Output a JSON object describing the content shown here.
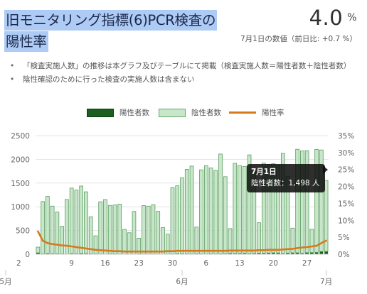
{
  "header": {
    "title_line1": "旧モニタリング指標(6)PCR検査の",
    "title_line2": "陽性率",
    "value": "4.0",
    "unit": "%",
    "sub": "7月1日の数値（前日比: +0.7 %）"
  },
  "notes": [
    "「検査実施人数」の推移は本グラフ及びテーブルにて掲載（検査実施人数＝陽性者数＋陰性者数）",
    "陰性確認のために行った検査の実施人数は含まない"
  ],
  "legend": {
    "positive": "陽性者数",
    "negative": "陰性者数",
    "rate": "陽性率"
  },
  "colors": {
    "positive": "#1b5e20",
    "negative": "#c8e6c9",
    "negative_border": "#5a9e60",
    "rate": "#d77a1c",
    "title_highlight": "#aecbf5"
  },
  "tooltip": {
    "title": "7月1日",
    "body": "陰性者数：1,498 人"
  },
  "chart_data": {
    "type": "bar",
    "left_ticks": [
      "0",
      "500",
      "1000",
      "1500",
      "2000",
      "2500"
    ],
    "right_ticks": [
      "0%",
      "5%",
      "10%",
      "15%",
      "20%",
      "25%",
      "30%",
      "35%"
    ],
    "ylim_left": [
      0,
      2500
    ],
    "ylim_right": [
      0,
      35
    ],
    "x_day_labels": [
      "2",
      "9",
      "16",
      "23",
      "30",
      "6",
      "13",
      "20",
      "27"
    ],
    "x_month_labels": [
      "5月",
      "6月",
      "7月"
    ],
    "x_start_date": "2020-05-02",
    "x_end_date": "2020-07-01",
    "series": [
      {
        "name": "陽性者数",
        "values": [
          30,
          10,
          18,
          14,
          12,
          8,
          4,
          15,
          12,
          18,
          16,
          10,
          8,
          6,
          3,
          10,
          8,
          6,
          4,
          3,
          2,
          8,
          6,
          4,
          5,
          3,
          2,
          4,
          6,
          14,
          12,
          10,
          8,
          12,
          8,
          6,
          10,
          8,
          12,
          14,
          20,
          16,
          18,
          22,
          14,
          18,
          24,
          22,
          26,
          30,
          28,
          16,
          26,
          30,
          32,
          20,
          34,
          36,
          40,
          58,
          60
        ]
      },
      {
        "name": "陰性者数",
        "values": [
          120,
          1100,
          1200,
          1000,
          880,
          580,
          1150,
          1380,
          1340,
          1420,
          1300,
          780,
          380,
          1100,
          1150,
          1020,
          1030,
          1050,
          520,
          450,
          900,
          330,
          1020,
          1010,
          1040,
          900,
          560,
          420,
          1400,
          1430,
          1600,
          1780,
          1850,
          560,
          1770,
          1860,
          1810,
          1760,
          2100,
          1620,
          520,
          1900,
          1850,
          1830,
          2080,
          1720,
          640,
          1900,
          1870,
          1880,
          1840,
          2110,
          1620,
          520,
          2180,
          2160,
          2150,
          490,
          2170,
          2140,
          1498
        ]
      },
      {
        "name": "陽性率",
        "values": [
          6.7,
          4.0,
          3.3,
          3.0,
          2.8,
          2.6,
          2.5,
          2.3,
          2.1,
          1.9,
          1.7,
          1.5,
          1.3,
          1.2,
          1.1,
          1.0,
          0.9,
          0.9,
          0.8,
          0.8,
          0.8,
          0.8,
          0.8,
          0.8,
          0.8,
          0.8,
          0.8,
          0.9,
          0.9,
          1.0,
          1.0,
          1.0,
          1.0,
          1.0,
          1.0,
          1.0,
          1.0,
          1.0,
          1.0,
          1.0,
          1.1,
          1.1,
          1.1,
          1.1,
          1.1,
          1.1,
          1.2,
          1.2,
          1.3,
          1.3,
          1.3,
          1.4,
          1.5,
          1.6,
          1.8,
          2.0,
          2.1,
          2.3,
          2.5,
          3.3,
          4.0
        ]
      }
    ]
  }
}
